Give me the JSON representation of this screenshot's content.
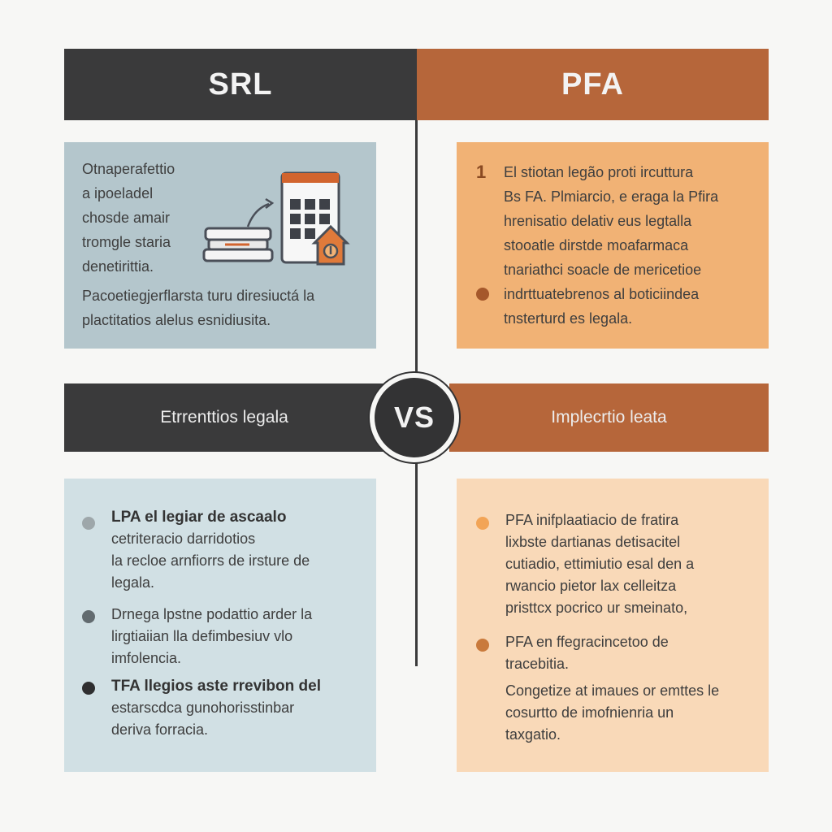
{
  "header": {
    "left": "SRL",
    "right": "PFA"
  },
  "vs_label": "VS",
  "bars": {
    "left": "Etrrenttios legala",
    "right": "Implecrtio leata"
  },
  "top_left": {
    "lines": [
      "Otnaperafettio",
      "a ipoeladel",
      "chosde amair",
      "tromgle staria",
      "denetirittia."
    ],
    "paragraph": [
      "Pacoetiegjerflarsta turu diresiuctá la",
      "plactitatios alelus esnidiusita."
    ]
  },
  "top_right": {
    "number": "1",
    "lines": [
      "El stiotan legão proti ircuttura",
      "Bs FA. Plmiarcio, e eraga la Pfira",
      "hrenisatio delativ eus legtalla",
      "stooatle dirstde moafarmaca",
      "tnariathci soacle de mericetioe"
    ],
    "bullet_lines": [
      "indrttuatebrenos al boticiindea",
      "tnsterturd es legala."
    ]
  },
  "bottom_left": {
    "items": [
      {
        "lines": [
          "LPA el legiar de ascaalo",
          "cetriteracio darridotios",
          "la recloe arnfiorrs de irsture de",
          "legala."
        ],
        "bold_first": true,
        "dot_color": "#9ea7aa"
      },
      {
        "lines": [
          "Drnega lpstne podattio arder la",
          "lirgtiaiian lla defimbesiuv vlo",
          "imfolencia."
        ],
        "bold_first": false,
        "dot_color": "#626b6f"
      },
      {
        "lines": [
          "TFA llegios aste rrevibon del",
          "estarscdca gunohorisstinbar",
          "deriva forracia."
        ],
        "bold_first": true,
        "dot_color": "#2f2f30"
      }
    ]
  },
  "bottom_right": {
    "items": [
      {
        "lines": [
          "PFA inifplaatiacio de fratira",
          "lixbste dartianas detisacitel",
          "cutiadio, ettimiutio esal den a",
          "rwancio pietor lax celleitza",
          "pristtcx pocrico ur smeinato,"
        ],
        "dot_color": "#f2a456"
      },
      {
        "lines": [
          "PFA en ffegracincetoo de",
          "tracebitia."
        ],
        "dot_color": "#c97a3c"
      }
    ],
    "paragraph": [
      "Congetize at imaues or emttes le",
      "cosurtto de imofnienria un",
      "taxgatio."
    ]
  },
  "colors": {
    "dark": "#3a3a3b",
    "accent": "#b6663a",
    "left_panel_top": "#b4c6cc",
    "right_panel_top": "#f1b275",
    "left_panel_bottom": "#d1e0e4",
    "right_panel_bottom": "#f9d9b8"
  },
  "icons": [
    "calendar-icon",
    "document-stack-icon",
    "house-badge-icon",
    "arrow-icon"
  ]
}
